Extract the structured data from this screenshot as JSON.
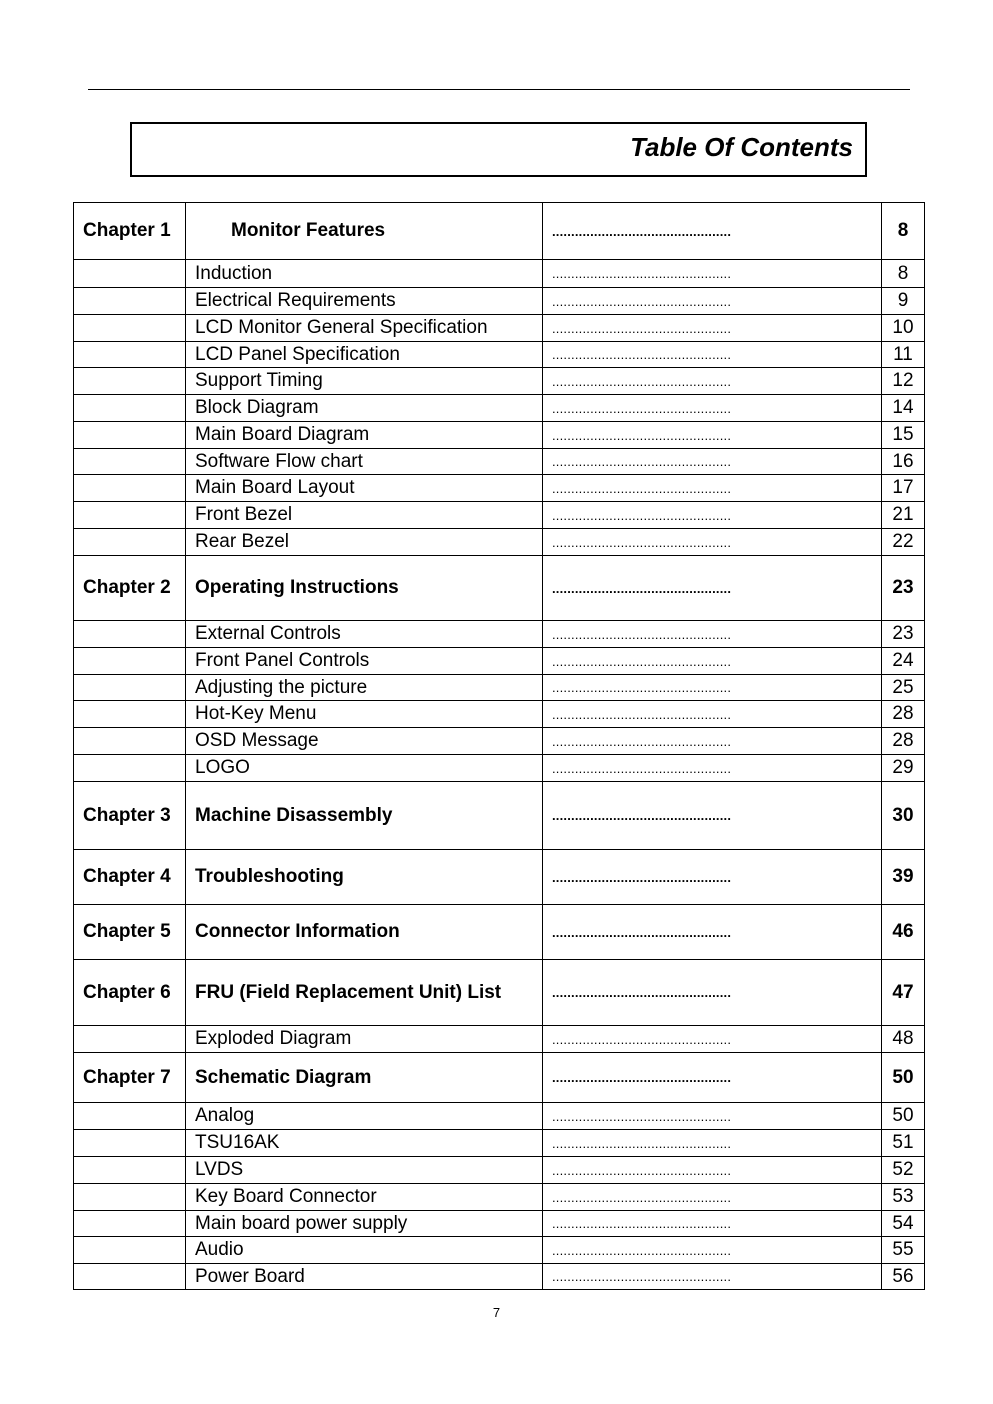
{
  "title": "Table Of Contents",
  "leader": "...............................................",
  "page_number": "7",
  "rows": [
    {
      "chapter": "Chapter 1",
      "title": "Monitor Features",
      "page": "8",
      "bold": true,
      "indent": true
    },
    {
      "chapter": "",
      "title": "Induction",
      "page": "8"
    },
    {
      "chapter": "",
      "title": "Electrical Requirements",
      "page": "9"
    },
    {
      "chapter": "",
      "title": "LCD Monitor General Specification",
      "page": "10"
    },
    {
      "chapter": "",
      "title": "LCD Panel Specification",
      "page": "11"
    },
    {
      "chapter": "",
      "title": "Support Timing",
      "page": "12"
    },
    {
      "chapter": "",
      "title": "Block Diagram",
      "page": "14"
    },
    {
      "chapter": "",
      "title": "Main Board Diagram",
      "page": "15"
    },
    {
      "chapter": "",
      "title": "Software Flow chart",
      "page": "16"
    },
    {
      "chapter": "",
      "title": "Main Board Layout",
      "page": "17"
    },
    {
      "chapter": "",
      "title": "Front Bezel",
      "page": "21"
    },
    {
      "chapter": "",
      "title": "Rear Bezel",
      "page": "22"
    },
    {
      "chapter": "Chapter 2",
      "title": "Operating Instructions",
      "page": "23",
      "bold": true
    },
    {
      "chapter": "",
      "title": "External Controls",
      "page": "23"
    },
    {
      "chapter": "",
      "title": "Front Panel Controls",
      "page": "24"
    },
    {
      "chapter": "",
      "title": "Adjusting the picture",
      "page": "25"
    },
    {
      "chapter": "",
      "title": "Hot-Key Menu",
      "page": "28"
    },
    {
      "chapter": "",
      "title": "OSD Message",
      "page": "28"
    },
    {
      "chapter": "",
      "title": "LOGO",
      "page": "29"
    },
    {
      "chapter": "Chapter 3",
      "title": "Machine Disassembly",
      "page": "30",
      "bold": true
    },
    {
      "chapter": "Chapter 4",
      "title": "Troubleshooting",
      "page": "39",
      "bold": true
    },
    {
      "chapter": "Chapter 5",
      "title": "Connector Information",
      "page": "46",
      "bold": true
    },
    {
      "chapter": "Chapter 6",
      "title": "FRU (Field Replacement Unit) List",
      "page": "47",
      "bold": true
    },
    {
      "chapter": "",
      "title": "Exploded Diagram",
      "page": "48"
    },
    {
      "chapter": "Chapter 7",
      "title": "Schematic Diagram",
      "page": "50",
      "bold": true
    },
    {
      "chapter": "",
      "title": "Analog",
      "page": "50"
    },
    {
      "chapter": "",
      "title": "TSU16AK",
      "page": "51"
    },
    {
      "chapter": "",
      "title": "LVDS",
      "page": "52"
    },
    {
      "chapter": "",
      "title": "Key Board Connector",
      "page": "53"
    },
    {
      "chapter": "",
      "title": "Main board power supply",
      "page": "54"
    },
    {
      "chapter": "",
      "title": "Audio",
      "page": "55"
    },
    {
      "chapter": "",
      "title": "Power Board",
      "page": "56"
    }
  ]
}
